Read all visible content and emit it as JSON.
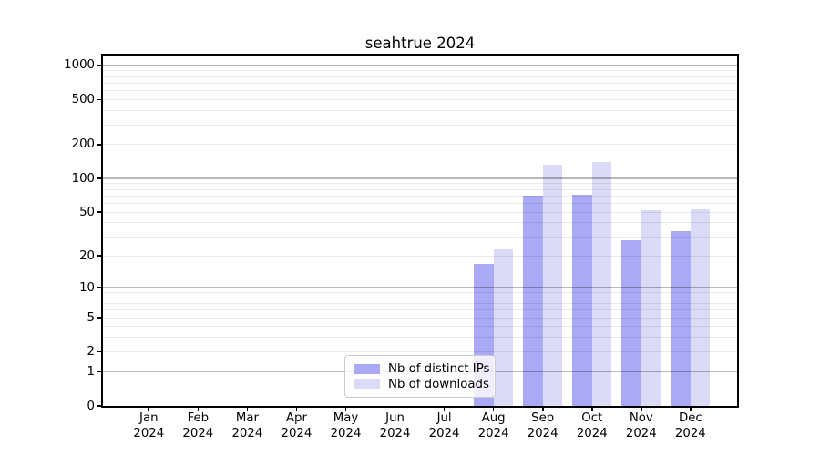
{
  "chart_data": {
    "type": "bar",
    "title": "seahtrue 2024",
    "year_label": "2024",
    "categories": [
      "Jan",
      "Feb",
      "Mar",
      "Apr",
      "May",
      "Jun",
      "Jul",
      "Aug",
      "Sep",
      "Oct",
      "Nov",
      "Dec"
    ],
    "series": [
      {
        "name": "Nb of distinct IPs",
        "color": "#a9a9f5",
        "values": [
          0,
          0,
          0,
          0,
          0,
          0,
          0,
          17,
          70,
          72,
          28,
          34
        ]
      },
      {
        "name": "Nb of downloads",
        "color": "#dbdbf8",
        "values": [
          0,
          0,
          0,
          0,
          0,
          0,
          0,
          23,
          133,
          140,
          52,
          53
        ]
      }
    ],
    "y_ticks": [
      0,
      1,
      2,
      5,
      10,
      20,
      50,
      100,
      200,
      500,
      1000
    ],
    "y_scale": "log10(value+1)",
    "ylim": [
      0,
      1230
    ],
    "grid": "horizontal; gray lines at powers of 10, light lines at 2-9 mantissas",
    "legend_position": "lower center inside axes",
    "colors": {
      "background": "#ffffff",
      "spine": "#000000",
      "grid_major": "rgba(0,0,0,0.28)",
      "grid_minor": "rgba(0,0,0,0.08)"
    }
  }
}
